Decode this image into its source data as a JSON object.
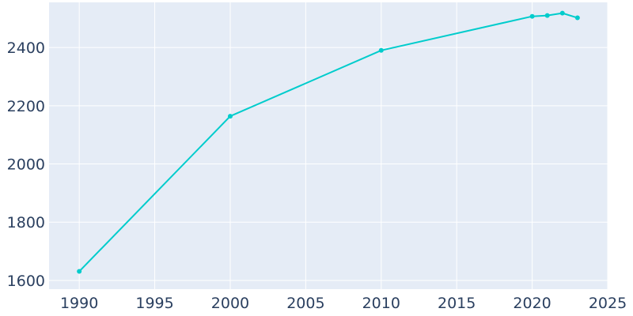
{
  "chart_data": {
    "type": "line",
    "title": "",
    "xlabel": "",
    "ylabel": "",
    "xlim": [
      1988,
      2025
    ],
    "ylim": [
      1570,
      2555
    ],
    "grid": true,
    "legend": "none",
    "x_ticks": [
      1990,
      1995,
      2000,
      2005,
      2010,
      2015,
      2020,
      2025
    ],
    "y_ticks": [
      1600,
      1800,
      2000,
      2200,
      2400
    ],
    "x_tick_labels": [
      "1990",
      "1995",
      "2000",
      "2005",
      "2010",
      "2015",
      "2020",
      "2025"
    ],
    "y_tick_labels": [
      "1600",
      "1800",
      "2000",
      "2200",
      "2400"
    ],
    "series": [
      {
        "x": [
          1990,
          2000,
          2010,
          2020,
          2021,
          2022,
          2023
        ],
        "y": [
          1631,
          2164,
          2390,
          2507,
          2510,
          2518,
          2502
        ]
      }
    ]
  },
  "colors": {
    "plot_background": "#e5ecf6",
    "grid": "#ffffff",
    "line": "#00cccc",
    "text": "#2a3f5f"
  }
}
